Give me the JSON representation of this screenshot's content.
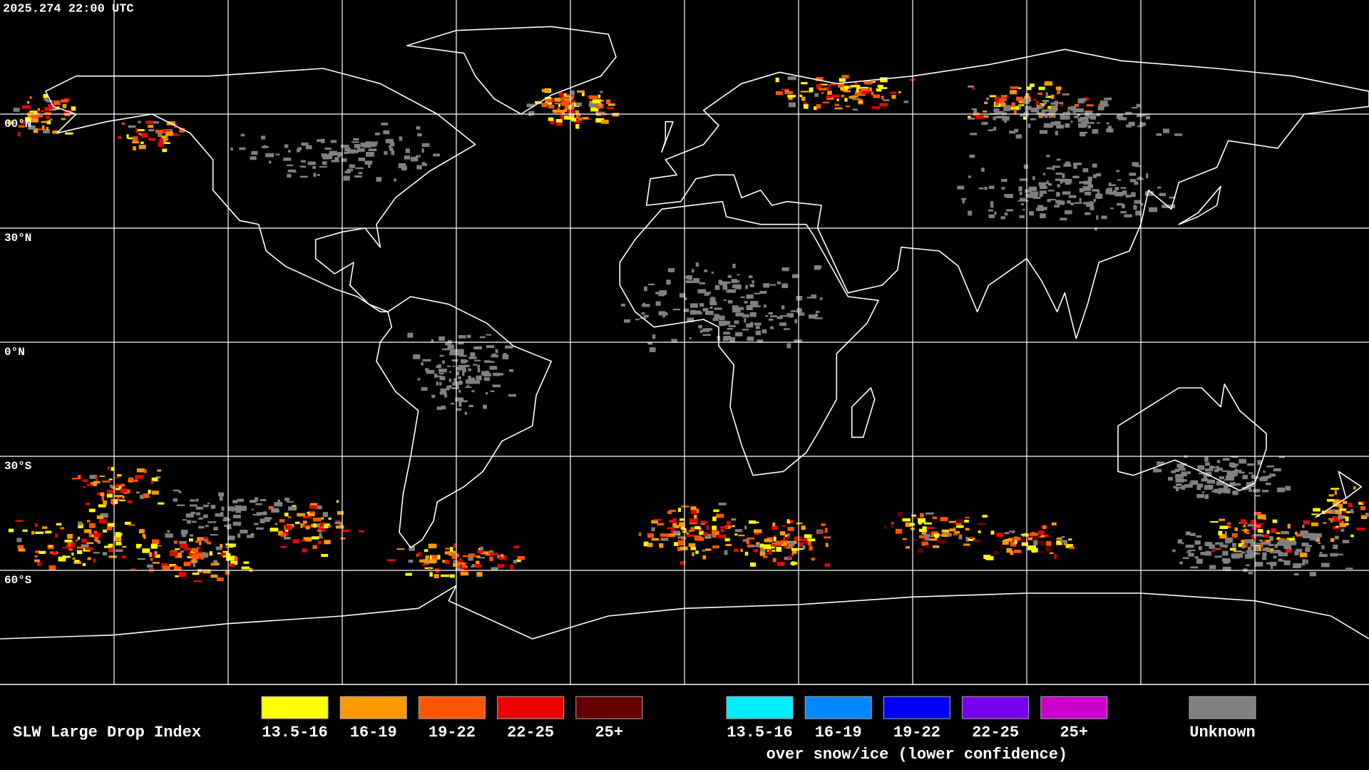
{
  "header": {
    "timestamp": "2025.274 22:00 UTC"
  },
  "map": {
    "latitude_labels": [
      "60°N",
      "30°N",
      "0°N",
      "30°S",
      "60°S"
    ]
  },
  "legend": {
    "title": "SLW Large Drop Index",
    "groups": [
      {
        "items": [
          {
            "label": "13.5-16",
            "color": "#ffff00"
          },
          {
            "label": "16-19",
            "color": "#ff9900"
          },
          {
            "label": "19-22",
            "color": "#ff5500"
          },
          {
            "label": "22-25",
            "color": "#ee0000"
          },
          {
            "label": "25+",
            "color": "#660000"
          }
        ]
      },
      {
        "items": [
          {
            "label": "13.5-16",
            "color": "#00eeff"
          },
          {
            "label": "16-19",
            "color": "#0088ff"
          },
          {
            "label": "19-22",
            "color": "#0000ff"
          },
          {
            "label": "22-25",
            "color": "#7700ee"
          },
          {
            "label": "25+",
            "color": "#cc00cc"
          }
        ],
        "caption": "over snow/ice (lower confidence)"
      },
      {
        "items": [
          {
            "label": "Unknown",
            "color": "#808080"
          }
        ]
      }
    ]
  }
}
